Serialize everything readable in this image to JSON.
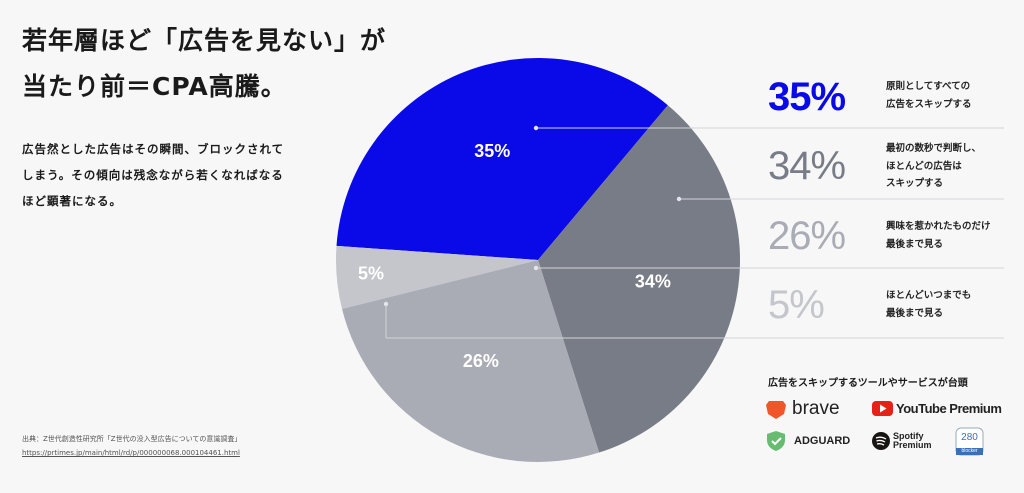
{
  "title": "若年層ほど「広告を見ない」が\n当たり前＝CPA高騰。",
  "description": "広告然とした広告はその瞬間、ブロックされて\nしまう。その傾向は残念ながら若くなればなる\nほど顕著になる。",
  "source": "出典：Z世代創造性研究所「Z世代の没入型広告についての意識調査」",
  "source_url": "https://prtimes.jp/main/html/rd/p/000000068.000104461.html",
  "chart_data": {
    "type": "pie",
    "categories": [
      "原則としてすべての\n広告をスキップする",
      "最初の数秒で判断し、\nほとんどの広告は\nスキップする",
      "興味を惹かれたものだけ\n最後まで見る",
      "ほとんどいつまでも\n最後まで見る"
    ],
    "values": [
      35,
      34,
      26,
      5
    ],
    "value_labels": [
      "35%",
      "34%",
      "26%",
      "5%"
    ],
    "colors": [
      "#0a0ae8",
      "#787c86",
      "#a9acb4",
      "#c4c6cb"
    ]
  },
  "tools_heading": "広告をスキップするツールやサービスが台頭",
  "tools": [
    "brave",
    "YouTube Premium",
    "ADGUARD",
    "Spotify\nPremium",
    "280",
    "blocker"
  ]
}
